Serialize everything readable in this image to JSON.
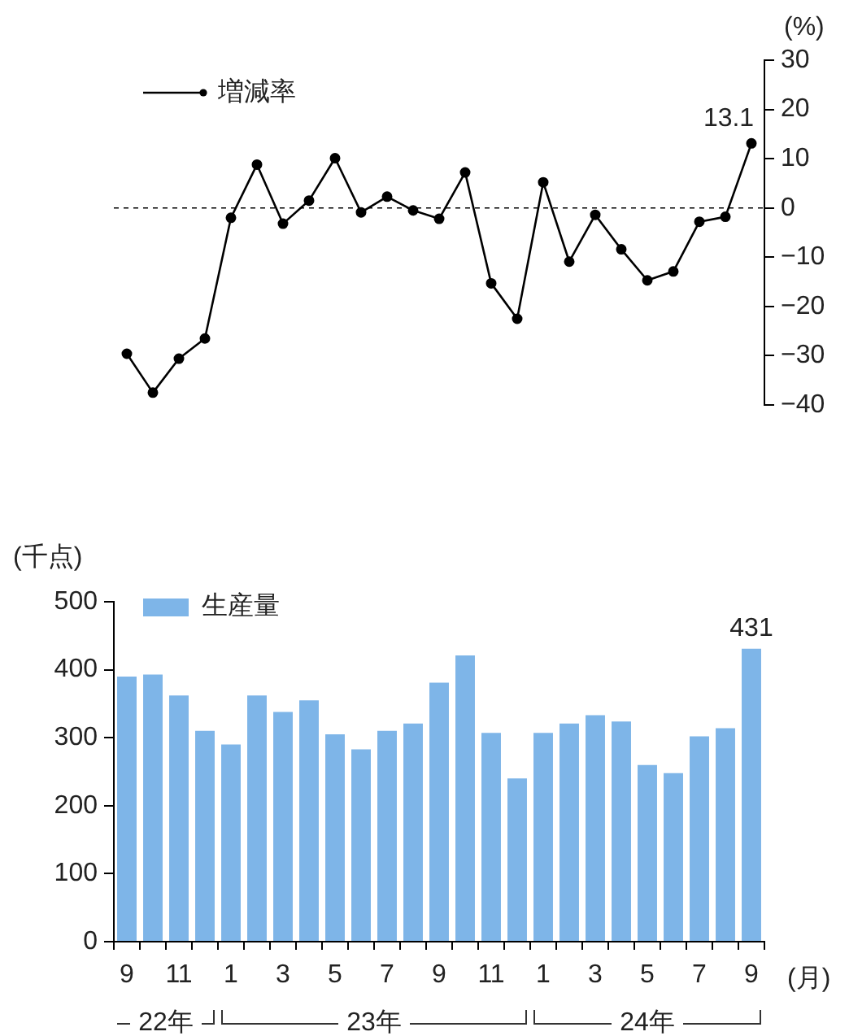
{
  "chart_data": [
    {
      "type": "line",
      "ylabel": "(%)",
      "categories": [
        "9",
        null,
        "11",
        null,
        "1",
        null,
        "3",
        null,
        "5",
        null,
        "7",
        null,
        "9",
        null,
        "11",
        null,
        "1",
        null,
        "3",
        null,
        "5",
        null,
        "7",
        null,
        "9"
      ],
      "series": [
        {
          "name": "増減率",
          "color": "#000000",
          "values": [
            -29.6,
            -37.5,
            -30.6,
            -26.5,
            -2.0,
            8.8,
            -3.2,
            1.5,
            10.1,
            -0.9,
            2.3,
            -0.5,
            -2.2,
            7.2,
            -15.3,
            -22.5,
            5.2,
            -10.9,
            -1.4,
            -8.4,
            -14.7,
            -12.9,
            -2.8,
            -1.8,
            13.1
          ],
          "value_labels": [
            null,
            null,
            null,
            null,
            null,
            null,
            null,
            null,
            null,
            null,
            null,
            null,
            null,
            null,
            null,
            null,
            null,
            null,
            null,
            null,
            null,
            null,
            null,
            null,
            "13.1"
          ]
        }
      ],
      "ylim": [
        -40,
        30
      ],
      "yticks": [
        -40,
        -30,
        -20,
        -10,
        0,
        10,
        20,
        30
      ],
      "ref_lines": [
        {
          "axis": "y",
          "value": 0,
          "color": "#000000",
          "line_style": "dashed"
        }
      ],
      "marker": "circle",
      "line_style": "solid",
      "legend": "top left",
      "tick_labels": "y"
    },
    {
      "type": "bar",
      "ylabel": "(千点)",
      "categories": [
        "9",
        null,
        "11",
        null,
        "1",
        null,
        "3",
        null,
        "5",
        null,
        "7",
        null,
        "9",
        null,
        "11",
        null,
        "1",
        null,
        "3",
        null,
        "5",
        null,
        "7",
        null,
        "9"
      ],
      "series": [
        {
          "name": "生産量",
          "color": "#7eb5e8",
          "values": [
            390,
            393,
            362,
            310,
            290,
            362,
            338,
            355,
            305,
            283,
            310,
            321,
            381,
            421,
            307,
            240,
            307,
            321,
            333,
            324,
            260,
            248,
            302,
            314,
            431
          ],
          "value_labels": [
            null,
            null,
            null,
            null,
            null,
            null,
            null,
            null,
            null,
            null,
            null,
            null,
            null,
            null,
            null,
            null,
            null,
            null,
            null,
            null,
            null,
            null,
            null,
            null,
            "431"
          ]
        }
      ],
      "ylim": [
        0,
        500
      ],
      "yticks": [
        0,
        100,
        200,
        300,
        400,
        500
      ],
      "legend": "top left",
      "annotations": [
        "22年",
        "23年",
        "24年",
        "(月)"
      ]
    }
  ]
}
